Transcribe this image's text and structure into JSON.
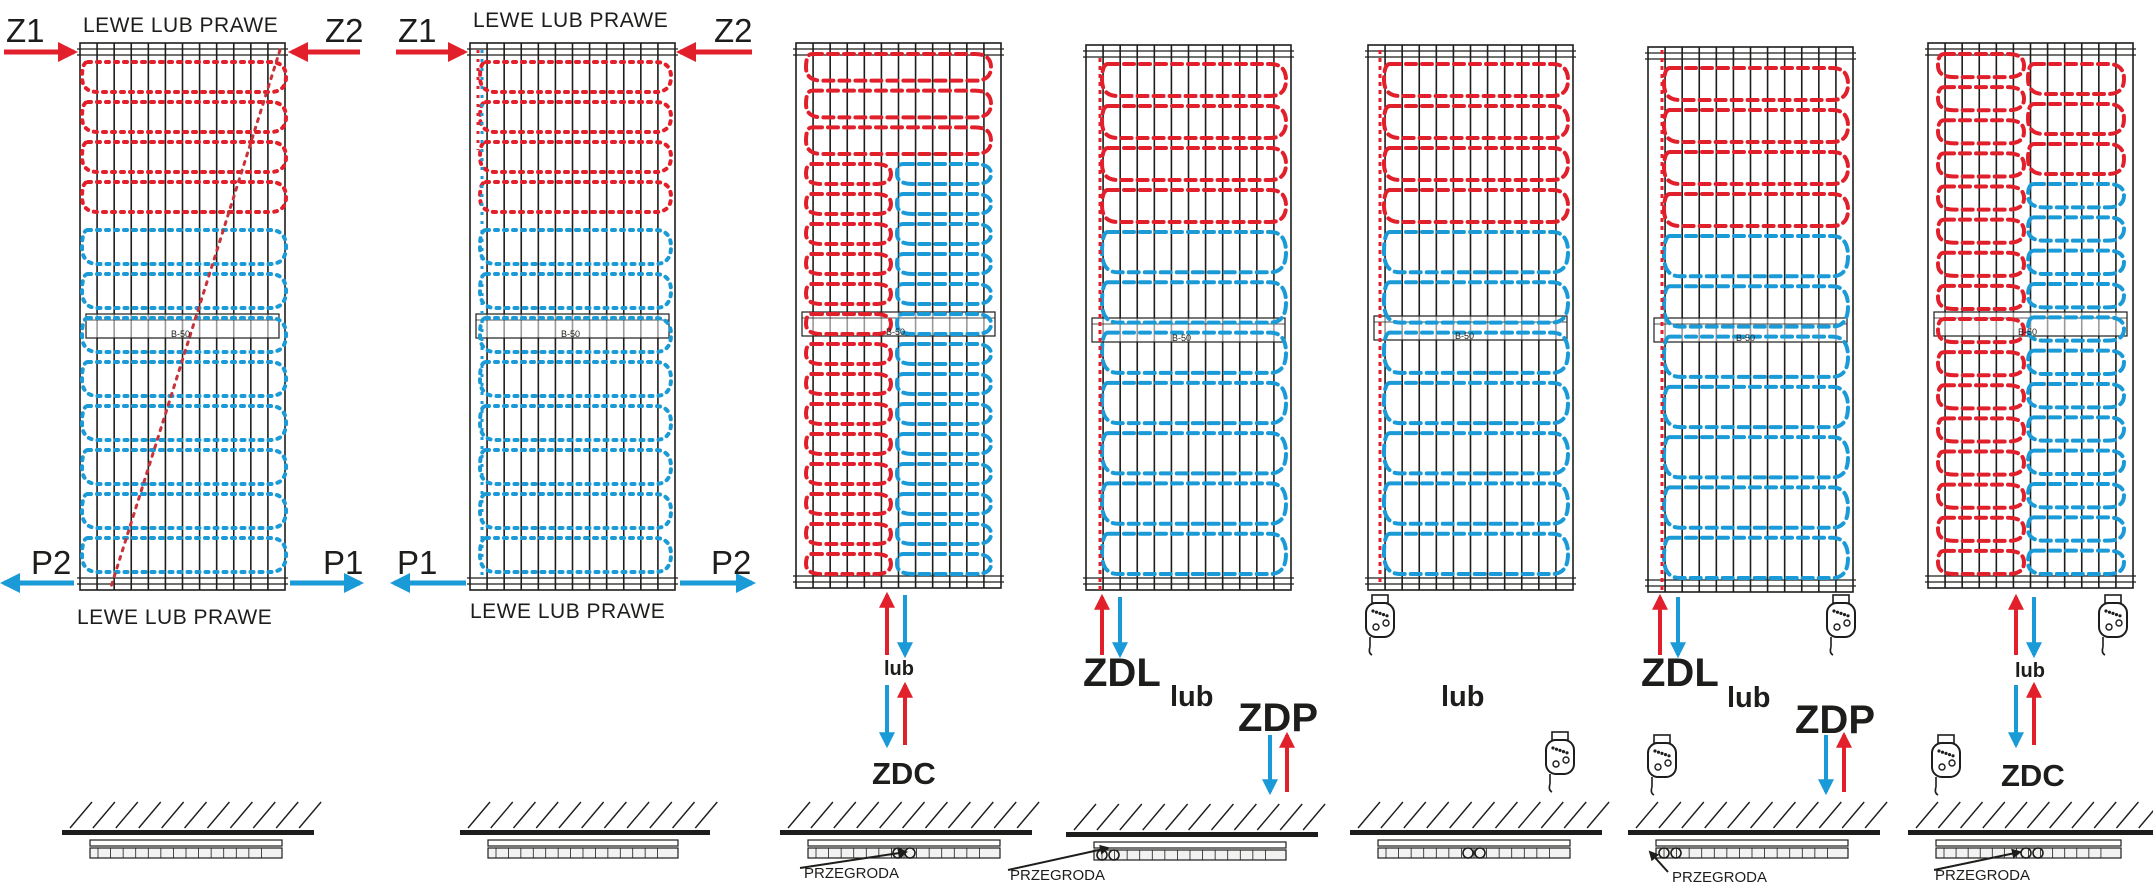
{
  "colors": {
    "supply": "#e2202c",
    "return": "#1a9ad7",
    "line": "#1d1d1b"
  },
  "panels": [
    {
      "id": "p1",
      "top_label": "LEWE LUB PRAWE",
      "bottom_label": "LEWE LUB PRAWE",
      "inlet_left": "Z1",
      "inlet_right": "Z2",
      "outlet_left": "P2",
      "outlet_right": "P1",
      "bar_mark": "B-50"
    },
    {
      "id": "p2",
      "top_label": "LEWE LUB PRAWE",
      "bottom_label": "LEWE LUB PRAWE",
      "inlet_left": "Z1",
      "inlet_right": "Z2",
      "outlet_left": "P1",
      "outlet_right": "P2",
      "bar_mark": "B-50"
    },
    {
      "id": "p3",
      "lub": "lub",
      "code": "ZDC",
      "partition_label": "PRZEGRODA",
      "bar_mark": "B-50"
    },
    {
      "id": "p4",
      "code_left": "ZDL",
      "lub": "lub",
      "code_right": "ZDP",
      "partition_label": "PRZEGRODA",
      "bar_mark": "B-50"
    },
    {
      "id": "p5",
      "lub": "lub",
      "bar_mark": "B-50",
      "element_icon": "heating-element-icon"
    },
    {
      "id": "p6",
      "code_left": "ZDL",
      "lub": "lub",
      "code_right": "ZDP",
      "partition_label": "PRZEGRODA",
      "bar_mark": "B-50",
      "element_icon": "heating-element-icon"
    },
    {
      "id": "p7",
      "lub": "lub",
      "code": "ZDC",
      "partition_label": "PRZEGRODA",
      "bar_mark": "B-50",
      "element_icon": "heating-element-icon"
    }
  ]
}
